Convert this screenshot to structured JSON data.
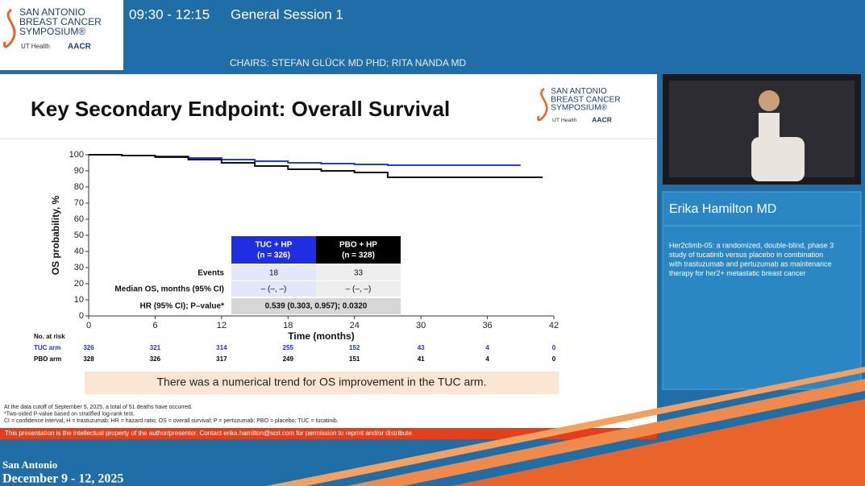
{
  "header": {
    "session": "09:30 - 12:15",
    "session_name": "General Session 1",
    "chairs": "CHAIRS: STEFAN GLÜCK MD PHD; RITA NANDA MD"
  },
  "logo": {
    "lines": [
      "SAN ANTONIO",
      "BREAST CANCER",
      "SYMPOSIUM®"
    ],
    "ut": "UT Health",
    "aacr": "AACR"
  },
  "slide": {
    "title": "Key Secondary Endpoint: Overall Survival",
    "inset": {
      "cols": [
        [
          "TUC + HP",
          "(n = 326)"
        ],
        [
          "PBO + HP",
          "(n = 328)"
        ]
      ],
      "rows": [
        {
          "label": "Events",
          "tuc": "18",
          "pbo": "33"
        },
        {
          "label": "Median OS, months (95% CI)",
          "tuc": "– (–, –)",
          "pbo": "– (–, –)"
        }
      ],
      "hr_label": "HR (95% CI); P–value*",
      "hr_value": "0.539 (0.303, 0.957); 0.0320"
    },
    "risk_table": {
      "title": "No. at risk",
      "rows": [
        {
          "name": "TUC arm",
          "color": "#2233cc",
          "values": [
            326,
            321,
            314,
            255,
            152,
            43,
            4,
            0
          ]
        },
        {
          "name": "PBO arm",
          "color": "#000000",
          "values": [
            328,
            326,
            317,
            249,
            151,
            41,
            4,
            0
          ]
        }
      ]
    },
    "banner": "There was a numerical trend for OS improvement in the TUC arm.",
    "footnotes": [
      "At the data cutoff of September 5, 2025, a total of 51 deaths have occurred.",
      "*Two-sided P-value based on stratified log-rank test.",
      "CI = confidence interval; H = trastuzumab; HR = hazard ratio; OS = overall survival; P = pertuzumab; PBO = placebo; TUC = tucatinib."
    ],
    "ip_notice": "This presentation is the intellectual property of the author/presenter. Contact erika.hamilton@scri.com for permission to reprint and/or distribute."
  },
  "chart_data": {
    "type": "line",
    "xlabel": "Time (months)",
    "ylabel": "OS probability, %",
    "x": [
      0,
      3,
      6,
      9,
      12,
      15,
      18,
      21,
      24,
      27,
      30,
      33,
      36,
      39,
      41
    ],
    "series": [
      {
        "name": "TUC arm",
        "color": "#2a3bd6",
        "values": [
          100,
          99.5,
          99,
          98,
          97,
          96,
          95,
          94.5,
          94,
          93.5,
          93.5,
          93.5,
          93.5,
          93.5,
          null
        ]
      },
      {
        "name": "PBO arm",
        "color": "#111111",
        "values": [
          100,
          99.5,
          98.5,
          97,
          95,
          93,
          91,
          90,
          89,
          86,
          86,
          86,
          86,
          86,
          86
        ]
      }
    ],
    "xlim": [
      0,
      42
    ],
    "xticks": [
      0,
      6,
      12,
      18,
      24,
      30,
      36,
      42
    ],
    "ylim": [
      0,
      100
    ],
    "yticks": [
      0,
      10,
      20,
      30,
      40,
      50,
      60,
      70,
      80,
      90,
      100
    ]
  },
  "speaker": {
    "name": "Erika Hamilton MD",
    "description": [
      "Her2climb-05: a randomized, double-blind, phase 3",
      "study of tucatinib versus placebo in combination",
      "with trastuzumab and pertuzumab as maintenance",
      "therapy for her2+ metastatic breast cancer"
    ]
  },
  "footer": {
    "city": "San Antonio",
    "dates": "December 9 - 12, 2025"
  }
}
